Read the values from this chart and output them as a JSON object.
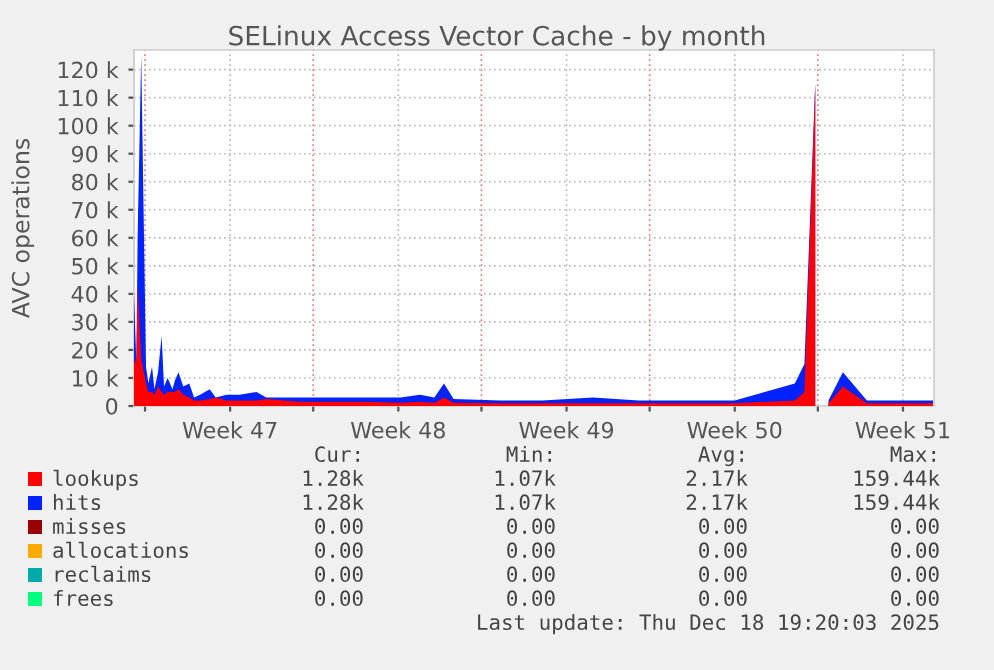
{
  "chart_data": {
    "type": "area",
    "title": "SELinux Access Vector Cache - by month",
    "ylabel": "AVC operations",
    "x": [
      "2025-11-16T13:00",
      "2025-11-16T15:24",
      "2025-11-16T16:36",
      "2025-11-16T20:12",
      "2025-11-17T01:00",
      "2025-11-17T03:24",
      "2025-11-17T07:00",
      "2025-11-17T09:24",
      "2025-11-17T13:00",
      "2025-11-17T16:36",
      "2025-11-17T19:00",
      "2025-11-17T22:36",
      "2025-11-18T03:24",
      "2025-11-18T05:48",
      "2025-11-18T09:24",
      "2025-11-18T14:12",
      "2025-11-18T20:12",
      "2025-11-19T01:00",
      "2025-11-19T07:00",
      "2025-11-19T16:36",
      "2025-11-19T22:36",
      "2025-11-20T09:24",
      "2025-11-20T22:36",
      "2025-11-21T15:24",
      "2025-11-22T01:00",
      "2025-11-23T10:36",
      "2025-11-24T20:12",
      "2025-11-26T05:48",
      "2025-11-27T15:24",
      "2025-11-28T10:36",
      "2025-11-29T01:00",
      "2025-11-29T10:36",
      "2025-11-29T20:12",
      "2025-12-01T19:00",
      "2025-12-03T13:00",
      "2025-12-05T15:24",
      "2025-12-07T13:00",
      "2025-12-09T13:00",
      "2025-12-11T13:00",
      "2025-12-14T01:00",
      "2025-12-14T10:36",
      "2025-12-14T21:24",
      "2025-12-15T01:00",
      "2025-12-15T10:36",
      "2025-12-16T01:00",
      "2025-12-17T01:00",
      "2025-12-18T01:00",
      "2025-12-19T19:00"
    ],
    "series": [
      {
        "name": "lookups",
        "color": "#ff0000",
        "values": [
          15000,
          17000,
          44000,
          17000,
          8000,
          5000,
          5000,
          4000,
          7000,
          5000,
          4000,
          5000,
          5000,
          5000,
          6000,
          4000,
          3000,
          2000,
          2000,
          2500,
          3000,
          2000,
          2000,
          2000,
          2500,
          1500,
          1500,
          1500,
          1200,
          1500,
          1200,
          3000,
          1200,
          1000,
          1000,
          1000,
          1000,
          1000,
          1000,
          2000,
          5000,
          115000,
          null,
          1000,
          7000,
          1000,
          1000,
          1000
        ]
      },
      {
        "name": "hits",
        "color": "#0022ff",
        "values": [
          40000,
          15000,
          60000,
          125000,
          14000,
          8000,
          14000,
          6000,
          12000,
          25000,
          7000,
          10000,
          6000,
          9000,
          12000,
          7000,
          8000,
          3000,
          4000,
          6000,
          3000,
          4000,
          4000,
          5000,
          3000,
          3000,
          3000,
          3000,
          3000,
          4000,
          3000,
          8000,
          2500,
          2000,
          2000,
          3000,
          2000,
          2000,
          2000,
          8000,
          15000,
          115000,
          null,
          2000,
          12000,
          2000,
          2000,
          2000
        ]
      },
      {
        "name": "misses",
        "color": "#990000",
        "values": [
          null,
          null,
          null,
          null,
          null,
          null,
          null,
          null,
          null,
          null,
          null,
          null,
          null,
          null,
          null,
          null,
          null,
          null,
          null,
          null,
          null,
          null,
          null,
          null,
          null,
          null,
          null,
          null,
          null,
          null,
          null,
          null,
          null,
          null,
          null,
          null,
          null,
          null,
          null,
          null,
          null,
          null,
          null,
          null,
          null,
          null,
          null,
          null
        ]
      },
      {
        "name": "allocations",
        "color": "#ffaa00",
        "values": [
          null,
          null,
          null,
          null,
          null,
          null,
          null,
          null,
          null,
          null,
          null,
          null,
          null,
          null,
          null,
          null,
          null,
          null,
          null,
          null,
          null,
          null,
          null,
          null,
          null,
          null,
          null,
          null,
          null,
          null,
          null,
          null,
          null,
          null,
          null,
          null,
          null,
          null,
          null,
          null,
          null,
          null,
          null,
          null,
          null,
          null,
          null,
          null
        ]
      },
      {
        "name": "reclaims",
        "color": "#00aaaa",
        "values": [
          null,
          null,
          null,
          null,
          null,
          null,
          null,
          null,
          null,
          null,
          null,
          null,
          null,
          null,
          null,
          null,
          null,
          null,
          null,
          null,
          null,
          null,
          null,
          null,
          null,
          null,
          null,
          null,
          null,
          null,
          null,
          null,
          null,
          null,
          null,
          null,
          null,
          null,
          null,
          null,
          null,
          null,
          null,
          null,
          null,
          null,
          null,
          null
        ]
      },
      {
        "name": "frees",
        "color": "#00ff7f",
        "values": [
          null,
          null,
          null,
          null,
          null,
          null,
          null,
          null,
          null,
          null,
          null,
          null,
          null,
          null,
          null,
          null,
          null,
          null,
          null,
          null,
          null,
          null,
          null,
          null,
          null,
          null,
          null,
          null,
          null,
          null,
          null,
          null,
          null,
          null,
          null,
          null,
          null,
          null,
          null,
          null,
          null,
          null,
          null,
          null,
          null,
          null,
          null,
          null
        ]
      }
    ],
    "xlim": [
      "2025-11-16T13:00",
      "2025-12-19T20:00"
    ],
    "xticks": [
      {
        "value": "2025-11-17",
        "label": null
      },
      {
        "value": "2025-11-20T13:00",
        "label": "Week 47"
      },
      {
        "value": "2025-11-24",
        "label": null
      },
      {
        "value": "2025-11-27T13:00",
        "label": "Week 48"
      },
      {
        "value": "2025-12-01",
        "label": null
      },
      {
        "value": "2025-12-04T13:00",
        "label": "Week 49"
      },
      {
        "value": "2025-12-08",
        "label": null
      },
      {
        "value": "2025-12-11T13:00",
        "label": "Week 50"
      },
      {
        "value": "2025-12-15",
        "label": null
      },
      {
        "value": "2025-12-18T13:00",
        "label": "Week 51"
      }
    ],
    "ylim": [
      0,
      127000
    ],
    "yticks": [
      {
        "value": 0,
        "label": "0"
      },
      {
        "value": 10000,
        "label": "10 k"
      },
      {
        "value": 20000,
        "label": "20 k"
      },
      {
        "value": 30000,
        "label": "30 k"
      },
      {
        "value": 40000,
        "label": "40 k"
      },
      {
        "value": 50000,
        "label": "50 k"
      },
      {
        "value": 60000,
        "label": "60 k"
      },
      {
        "value": 70000,
        "label": "70 k"
      },
      {
        "value": 80000,
        "label": "80 k"
      },
      {
        "value": 90000,
        "label": "90 k"
      },
      {
        "value": 100000,
        "label": "100 k"
      },
      {
        "value": 110000,
        "label": "110 k"
      },
      {
        "value": 120000,
        "label": "120 k"
      }
    ],
    "grid": true,
    "legend": "bottom",
    "annotations": [
      "Cur:",
      "Min:",
      "Avg:",
      "Max:",
      "1.28k",
      "1.07k",
      "2.17k",
      "159.44k",
      "1.28k",
      "1.07k",
      "2.17k",
      "159.44k",
      "0.00",
      "0.00",
      "0.00",
      "0.00",
      "0.00",
      "0.00",
      "0.00",
      "0.00",
      "0.00",
      "0.00",
      "0.00",
      "0.00",
      "0.00",
      "0.00",
      "0.00",
      "0.00",
      "Last update: Thu Dec 18 19:20:03 2025"
    ]
  }
}
